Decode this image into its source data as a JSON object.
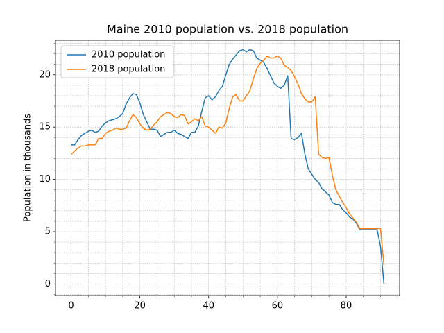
{
  "chart_data": {
    "type": "line",
    "title": "Maine 2010 population vs. 2018 population",
    "ylabel": "Population in thousands",
    "x": [
      0,
      1,
      2,
      3,
      4,
      5,
      6,
      7,
      8,
      9,
      10,
      11,
      12,
      13,
      14,
      15,
      16,
      17,
      18,
      19,
      20,
      21,
      22,
      23,
      24,
      25,
      26,
      27,
      28,
      29,
      30,
      31,
      32,
      33,
      34,
      35,
      36,
      37,
      38,
      39,
      40,
      41,
      42,
      43,
      44,
      45,
      46,
      47,
      48,
      49,
      50,
      51,
      52,
      53,
      54,
      55,
      56,
      57,
      58,
      59,
      60,
      61,
      62,
      63,
      64,
      65,
      66,
      67,
      68,
      69,
      70,
      71,
      72,
      73,
      74,
      75,
      76,
      77,
      78,
      79,
      80,
      81,
      82,
      83,
      84,
      85,
      86,
      87,
      88,
      89,
      90,
      91
    ],
    "series": [
      {
        "name": "2010 population",
        "color": "#1f77b4",
        "values": [
          13.3,
          13.3,
          13.8,
          14.2,
          14.4,
          14.6,
          14.7,
          14.5,
          14.6,
          15.1,
          15.4,
          15.6,
          15.7,
          15.8,
          16.0,
          16.3,
          17.2,
          17.8,
          18.2,
          18.1,
          17.3,
          16.2,
          15.5,
          14.8,
          14.8,
          14.7,
          14.1,
          14.3,
          14.5,
          14.5,
          14.7,
          14.4,
          14.3,
          14.1,
          13.9,
          14.5,
          14.5,
          15.1,
          16.5,
          17.8,
          18.0,
          17.6,
          17.9,
          18.5,
          18.9,
          20.0,
          21.0,
          21.5,
          21.9,
          22.3,
          22.4,
          22.2,
          22.4,
          22.3,
          21.6,
          21.4,
          21.2,
          20.6,
          19.9,
          19.2,
          18.9,
          18.7,
          19.0,
          19.9,
          13.9,
          13.8,
          14.0,
          14.4,
          12.4,
          11.0,
          10.5,
          10.0,
          9.7,
          9.1,
          8.8,
          8.5,
          7.8,
          7.6,
          7.6,
          7.1,
          6.8,
          6.4,
          6.2,
          5.8,
          5.2,
          5.2,
          5.2,
          5.2,
          5.2,
          5.2,
          3.6,
          0.0
        ]
      },
      {
        "name": "2018 population",
        "color": "#ff7f0e",
        "values": [
          12.4,
          12.7,
          13.0,
          13.2,
          13.2,
          13.3,
          13.3,
          13.3,
          13.9,
          13.9,
          14.4,
          14.6,
          14.7,
          14.9,
          14.8,
          14.8,
          14.9,
          15.6,
          16.2,
          15.9,
          15.3,
          14.9,
          14.7,
          14.8,
          15.2,
          15.5,
          16.0,
          16.2,
          16.4,
          16.3,
          16.0,
          15.9,
          16.2,
          16.1,
          15.3,
          15.5,
          15.8,
          15.6,
          16.0,
          15.1,
          15.0,
          14.7,
          14.4,
          15.0,
          14.9,
          15.4,
          16.8,
          17.9,
          18.1,
          17.5,
          17.5,
          18.0,
          18.5,
          19.6,
          20.6,
          21.1,
          21.4,
          21.8,
          21.6,
          21.6,
          21.8,
          21.6,
          20.9,
          20.7,
          20.4,
          19.8,
          19.1,
          18.2,
          17.7,
          17.4,
          17.4,
          17.9,
          12.4,
          12.1,
          12.0,
          12.1,
          10.4,
          9.0,
          8.4,
          7.8,
          7.3,
          6.7,
          6.3,
          5.9,
          5.3,
          5.3,
          5.3,
          5.3,
          5.3,
          5.3,
          5.3,
          1.8
        ]
      }
    ],
    "xlim": [
      -4.55,
      95.55
    ],
    "ylim": [
      -1.1,
      23.3
    ],
    "xticks": [
      0,
      20,
      40,
      60,
      80
    ],
    "yticks": [
      0,
      5,
      10,
      15,
      20
    ],
    "xminorticks": [
      -5,
      5,
      10,
      15,
      25,
      30,
      35,
      45,
      50,
      55,
      65,
      70,
      75,
      85,
      90,
      95
    ],
    "yminorticks": [
      -1,
      1,
      2,
      3,
      4,
      6,
      7,
      8,
      9,
      11,
      12,
      13,
      14,
      16,
      17,
      18,
      19,
      21,
      22,
      23
    ],
    "grid": true,
    "legend": "upper left"
  }
}
